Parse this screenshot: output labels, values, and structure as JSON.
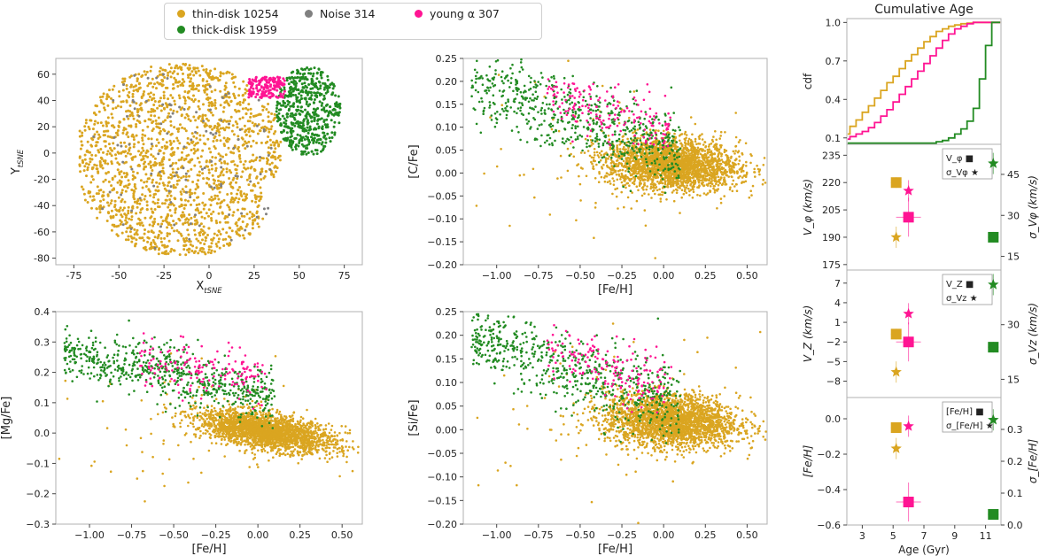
{
  "legend": {
    "thin": {
      "label": "thin-disk 10254",
      "color": "#DAA520"
    },
    "noise": {
      "label": "Noise 314",
      "color": "#808080"
    },
    "young": {
      "label": "young α 307",
      "color": "#FF1493"
    },
    "thick": {
      "label": "thick-disk 1959",
      "color": "#228B22"
    }
  },
  "chart_data": [
    {
      "id": "tsne",
      "type": "scatter",
      "xlabel": "X_tSNE",
      "ylabel": "Y_tSNE",
      "xlim": [
        -85,
        85
      ],
      "ylim": [
        -85,
        72
      ],
      "xticks": [
        -75,
        -50,
        -25,
        0,
        25,
        50,
        75
      ],
      "yticks": [
        -80,
        -60,
        -40,
        -20,
        0,
        20,
        40,
        60
      ],
      "series": [
        {
          "name": "thin-disk 10254",
          "region": "x -72 to 40, y -78 to 68"
        },
        {
          "name": "thick-disk 1959",
          "region": "x 37 to 72, y -2 to 65"
        },
        {
          "name": "young α 307",
          "region": "x 22 to 42, y 42 to 58"
        },
        {
          "name": "Noise 314",
          "region": "scattered within thin-disk cluster"
        }
      ]
    },
    {
      "id": "cfe",
      "type": "scatter",
      "xlabel": "[Fe/H]",
      "ylabel": "[C/Fe]",
      "xlim": [
        -1.2,
        0.62
      ],
      "ylim": [
        -0.2,
        0.25
      ],
      "xticks": [
        "−1.00",
        "−0.75",
        "−0.50",
        "−0.25",
        "0.00",
        "0.25",
        "0.50"
      ],
      "yticks": [
        "−0.20",
        "−0.15",
        "−0.10",
        "−0.05",
        "0.00",
        "0.05",
        "0.10",
        "0.15",
        "0.20",
        "0.25"
      ]
    },
    {
      "id": "mgfe",
      "type": "scatter",
      "xlabel": "[Fe/H]",
      "ylabel": "[Mg/Fe]",
      "xlim": [
        -1.2,
        0.62
      ],
      "ylim": [
        -0.3,
        0.4
      ],
      "xticks": [
        "−1.00",
        "−0.75",
        "−0.50",
        "−0.25",
        "0.00",
        "0.25",
        "0.50"
      ],
      "yticks": [
        "−0.3",
        "−0.2",
        "−0.1",
        "0.0",
        "0.1",
        "0.2",
        "0.3",
        "0.4"
      ]
    },
    {
      "id": "sife",
      "type": "scatter",
      "xlabel": "[Fe/H]",
      "ylabel": "[Si/Fe]",
      "xlim": [
        -1.2,
        0.62
      ],
      "ylim": [
        -0.2,
        0.25
      ],
      "xticks": [
        "−1.00",
        "−0.75",
        "−0.50",
        "−0.25",
        "0.00",
        "0.25",
        "0.50"
      ],
      "yticks": [
        "−0.20",
        "−0.15",
        "−0.10",
        "−0.05",
        "0.00",
        "0.05",
        "0.10",
        "0.15",
        "0.20",
        "0.25"
      ]
    },
    {
      "id": "cdf",
      "type": "line",
      "title": "Cumulative Age",
      "ylabel": "cdf",
      "xlim": [
        2,
        12
      ],
      "ylim": [
        0.05,
        1.03
      ],
      "yticks": [
        "0.1",
        "0.4",
        "0.7",
        "1.0"
      ],
      "series": [
        {
          "name": "thin-disk",
          "x": [
            2.2,
            2.6,
            3,
            3.4,
            3.8,
            4.2,
            4.6,
            5,
            5.4,
            5.8,
            6.2,
            6.6,
            7,
            7.4,
            7.8,
            8.2,
            8.6,
            9,
            9.4,
            9.8,
            10.2,
            10.6,
            11,
            11.4,
            11.8
          ],
          "y": [
            0.13,
            0.19,
            0.24,
            0.3,
            0.35,
            0.41,
            0.47,
            0.53,
            0.58,
            0.64,
            0.7,
            0.75,
            0.8,
            0.85,
            0.89,
            0.93,
            0.95,
            0.97,
            0.98,
            0.99,
            0.995,
            1.0,
            1.0,
            1.0,
            1.0
          ]
        },
        {
          "name": "young α",
          "x": [
            2.2,
            2.6,
            3,
            3.4,
            3.8,
            4.2,
            4.6,
            5,
            5.4,
            5.8,
            6.2,
            6.6,
            7,
            7.4,
            7.8,
            8.2,
            8.6,
            9,
            9.4,
            9.8,
            10.2,
            10.6,
            11,
            11.4,
            11.8
          ],
          "y": [
            0.09,
            0.11,
            0.13,
            0.15,
            0.18,
            0.22,
            0.27,
            0.32,
            0.38,
            0.44,
            0.5,
            0.56,
            0.62,
            0.68,
            0.74,
            0.8,
            0.86,
            0.91,
            0.95,
            0.97,
            0.99,
            1.0,
            1.0,
            1.0,
            1.0
          ]
        },
        {
          "name": "thick-disk",
          "x": [
            2.2,
            7.8,
            8.2,
            8.6,
            9,
            9.4,
            9.8,
            10.2,
            10.6,
            11,
            11.4,
            11.8
          ],
          "y": [
            0.06,
            0.06,
            0.07,
            0.08,
            0.1,
            0.13,
            0.17,
            0.23,
            0.33,
            0.56,
            0.82,
            1.0
          ]
        }
      ]
    },
    {
      "id": "vphi",
      "type": "scatter",
      "ylabel_left": "V_φ (km/s)",
      "ylabel_right": "σ_Vφ (km/s)",
      "ylim_left": [
        172,
        241
      ],
      "ylim_right": [
        10,
        56
      ],
      "yticks_left": [
        "175",
        "190",
        "205",
        "220",
        "235"
      ],
      "yticks_right": [
        "15",
        "30",
        "45"
      ],
      "legend_mean": "V_φ ■",
      "legend_sigma": "σ_Vφ ★",
      "points": [
        {
          "group": "thin-disk",
          "age": 5.2,
          "mean": 220,
          "sigma": 22
        },
        {
          "group": "young α",
          "age": 6.0,
          "mean": 201,
          "sigma": 39
        },
        {
          "group": "thick-disk",
          "age": 11.5,
          "mean": 190,
          "sigma": 49
        }
      ]
    },
    {
      "id": "vz",
      "type": "scatter",
      "ylabel_left": "V_Z (km/s)",
      "ylabel_right": "σ_Vz (km/s)",
      "ylim_left": [
        -10.5,
        9
      ],
      "ylim_right": [
        10,
        45
      ],
      "yticks_left": [
        "−8",
        "−5",
        "−2",
        "1",
        "4",
        "7"
      ],
      "yticks_right": [
        "15",
        "30"
      ],
      "legend_mean": "V_Z ■",
      "legend_sigma": "σ_Vz ★",
      "points": [
        {
          "group": "thin-disk",
          "age": 5.2,
          "mean": -0.8,
          "sigma": 17
        },
        {
          "group": "young α",
          "age": 6.0,
          "mean": -2.0,
          "sigma": 33
        },
        {
          "group": "thick-disk",
          "age": 11.5,
          "mean": -2.8,
          "sigma": 41
        }
      ]
    },
    {
      "id": "feh",
      "type": "scatter",
      "xlabel": "Age (Gyr)",
      "ylabel_left": "[Fe/H]",
      "ylabel_right": "σ_[Fe/H]",
      "xlim": [
        2,
        12
      ],
      "xticks": [
        "3",
        "5",
        "7",
        "9",
        "11"
      ],
      "ylim_left": [
        -0.6,
        0.12
      ],
      "ylim_right": [
        0,
        0.4
      ],
      "yticks_left": [
        "−0.6",
        "−0.4",
        "−0.2",
        "0.0"
      ],
      "yticks_right": [
        "0.0",
        "0.1",
        "0.2",
        "0.3"
      ],
      "legend_mean": "[Fe/H] ■",
      "legend_sigma": "σ_[Fe/H] ★",
      "points": [
        {
          "group": "thin-disk",
          "age": 5.2,
          "mean": -0.05,
          "sigma": 0.24
        },
        {
          "group": "young α",
          "age": 6.0,
          "mean": -0.47,
          "sigma": 0.31
        },
        {
          "group": "thick-disk",
          "age": 11.5,
          "mean": -0.54,
          "sigma": 0.33
        }
      ]
    }
  ]
}
